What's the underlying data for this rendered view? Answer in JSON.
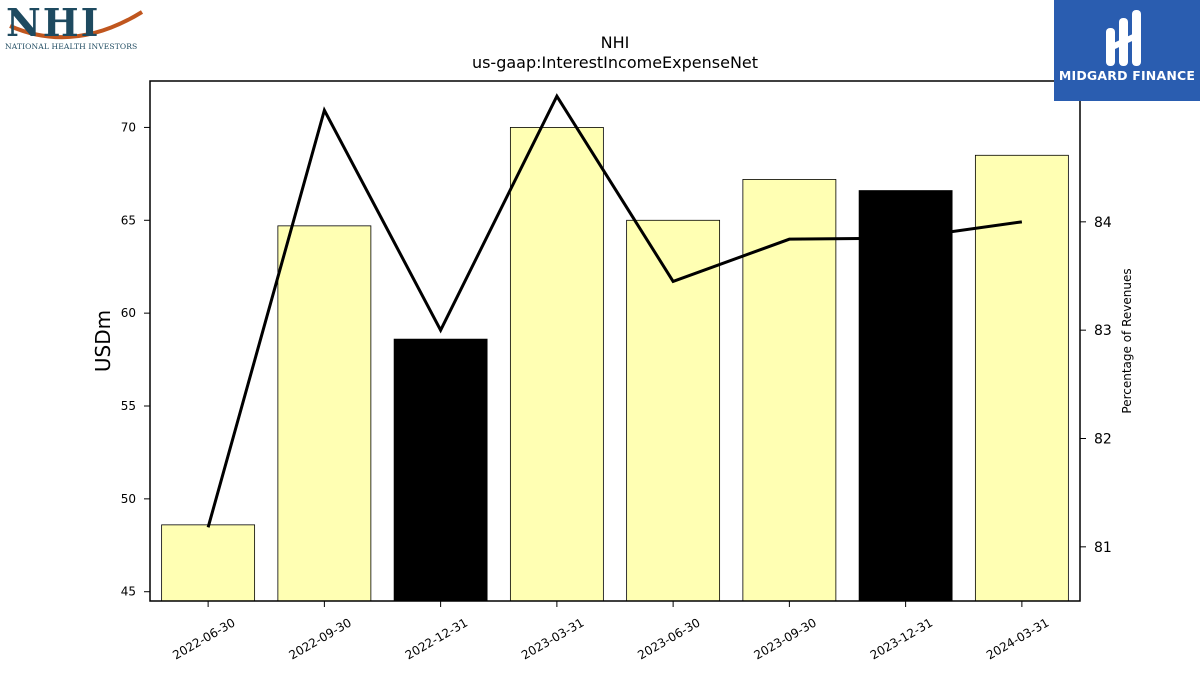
{
  "logos": {
    "left_company": "NHI",
    "left_tagline": "NATIONAL HEALTH INVESTORS",
    "right_brand": "MIDGARD FINANCE"
  },
  "colors": {
    "bar_fill": "#ffffb3",
    "bar_highlight": "#000000",
    "line": "#000000",
    "brand_blue": "#2a5db0",
    "nhi_teal": "#1e4a60",
    "nhi_orange": "#c0561e"
  },
  "chart_data": {
    "type": "bar",
    "title": "NHI",
    "subtitle": "us-gaap:InterestIncomeExpenseNet",
    "ylabel": "USDm",
    "y2label": "Percentage of Revenues",
    "categories": [
      "2022-06-30",
      "2022-09-30",
      "2022-12-31",
      "2023-03-31",
      "2023-06-30",
      "2023-09-30",
      "2023-12-31",
      "2024-03-31"
    ],
    "ylim": [
      44.5,
      72.5
    ],
    "yticks": [
      45,
      50,
      55,
      60,
      65,
      70
    ],
    "y2lim": [
      80.5,
      85.3
    ],
    "y2ticks": [
      81,
      82,
      83,
      84
    ],
    "grid": false,
    "series": [
      {
        "kind": "bar",
        "axis": "left",
        "values": [
          48.6,
          64.7,
          58.6,
          70.0,
          65.0,
          67.2,
          66.6,
          68.5
        ],
        "highlight": [
          false,
          false,
          true,
          false,
          false,
          false,
          true,
          false
        ]
      },
      {
        "kind": "line",
        "axis": "right",
        "values": [
          81.18,
          85.03,
          83.0,
          85.16,
          83.45,
          83.84,
          83.85,
          84.0
        ]
      }
    ]
  }
}
